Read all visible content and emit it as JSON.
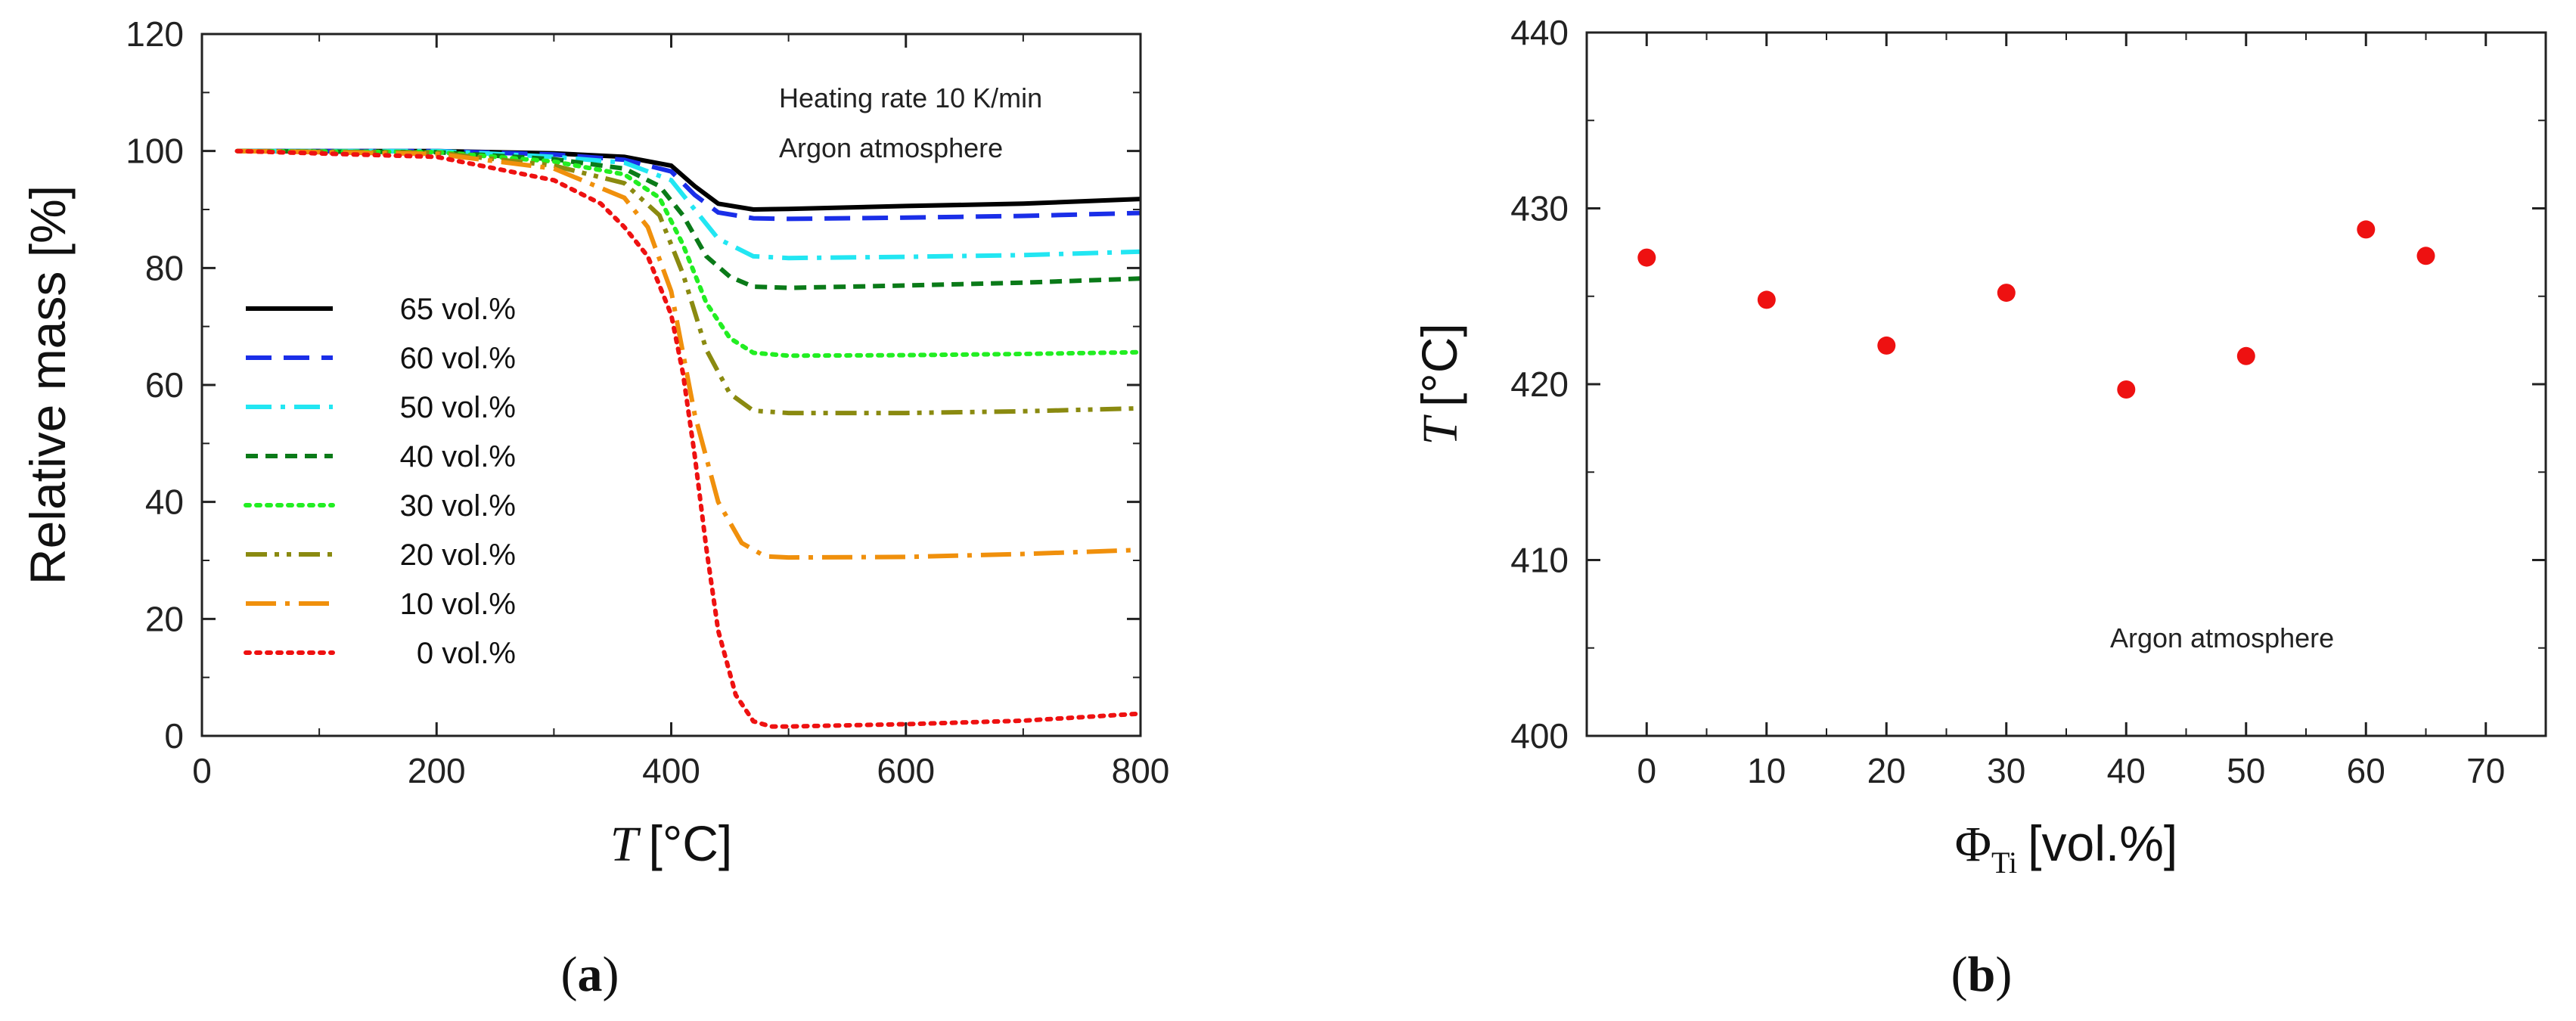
{
  "chart_data": [
    {
      "type": "line",
      "panel_label": "a",
      "title": "",
      "xlabel_symbol": "T",
      "xlabel_unit": "[°C]",
      "ylabel": "Relative mass [%]",
      "xlim": [
        0,
        800
      ],
      "ylim": [
        0,
        120
      ],
      "xticks": [
        0,
        200,
        400,
        600,
        800
      ],
      "yticks": [
        0,
        20,
        40,
        60,
        80,
        100,
        120
      ],
      "grid": false,
      "legend_position": "left",
      "annotations": [
        "Heating rate 10 K/min",
        "Argon atmosphere"
      ],
      "series": [
        {
          "name": "65 vol.%",
          "color": "#000000",
          "dash": "solid",
          "points": [
            [
              30,
              100
            ],
            [
              200,
              100
            ],
            [
              300,
              99.6
            ],
            [
              360,
              99
            ],
            [
              400,
              97.5
            ],
            [
              420,
              94
            ],
            [
              440,
              91
            ],
            [
              470,
              90
            ],
            [
              500,
              90.1
            ],
            [
              600,
              90.6
            ],
            [
              700,
              91
            ],
            [
              800,
              91.8
            ]
          ]
        },
        {
          "name": "60 vol.%",
          "color": "#1a2ee8",
          "dash": "dash",
          "points": [
            [
              30,
              100
            ],
            [
              200,
              100
            ],
            [
              300,
              99.4
            ],
            [
              360,
              98.5
            ],
            [
              400,
              96.5
            ],
            [
              420,
              92.5
            ],
            [
              440,
              89.5
            ],
            [
              470,
              88.5
            ],
            [
              500,
              88.4
            ],
            [
              600,
              88.6
            ],
            [
              700,
              88.9
            ],
            [
              800,
              89.4
            ]
          ]
        },
        {
          "name": "50 vol.%",
          "color": "#22e6f2",
          "dash": "dashdot",
          "points": [
            [
              30,
              100
            ],
            [
              200,
              100
            ],
            [
              300,
              99
            ],
            [
              360,
              98
            ],
            [
              400,
              95
            ],
            [
              420,
              90
            ],
            [
              440,
              85
            ],
            [
              470,
              82
            ],
            [
              500,
              81.7
            ],
            [
              600,
              81.9
            ],
            [
              700,
              82.2
            ],
            [
              800,
              82.8
            ]
          ]
        },
        {
          "name": "40 vol.%",
          "color": "#0a7a18",
          "dash": "shortdash",
          "points": [
            [
              30,
              100
            ],
            [
              200,
              99.8
            ],
            [
              300,
              98.6
            ],
            [
              360,
              97
            ],
            [
              390,
              94
            ],
            [
              410,
              89
            ],
            [
              430,
              82
            ],
            [
              450,
              78.5
            ],
            [
              470,
              76.8
            ],
            [
              500,
              76.6
            ],
            [
              600,
              77
            ],
            [
              700,
              77.5
            ],
            [
              800,
              78.2
            ]
          ]
        },
        {
          "name": "30 vol.%",
          "color": "#22ee22",
          "dash": "dot",
          "points": [
            [
              30,
              100
            ],
            [
              200,
              99.8
            ],
            [
              300,
              98.2
            ],
            [
              360,
              96
            ],
            [
              390,
              92
            ],
            [
              410,
              84
            ],
            [
              430,
              74
            ],
            [
              450,
              68
            ],
            [
              470,
              65.5
            ],
            [
              500,
              65
            ],
            [
              600,
              65.1
            ],
            [
              700,
              65.3
            ],
            [
              800,
              65.6
            ]
          ]
        },
        {
          "name": "20 vol.%",
          "color": "#8a8a10",
          "dash": "dashdotdot",
          "points": [
            [
              30,
              100
            ],
            [
              200,
              99.7
            ],
            [
              300,
              97.5
            ],
            [
              360,
              94.5
            ],
            [
              390,
              89
            ],
            [
              410,
              79
            ],
            [
              430,
              66
            ],
            [
              450,
              58.5
            ],
            [
              470,
              55.6
            ],
            [
              500,
              55.2
            ],
            [
              600,
              55.2
            ],
            [
              700,
              55.5
            ],
            [
              800,
              56
            ]
          ]
        },
        {
          "name": "10 vol.%",
          "color": "#f0900c",
          "dash": "longdashdot",
          "points": [
            [
              30,
              100
            ],
            [
              200,
              99.5
            ],
            [
              300,
              97
            ],
            [
              360,
              92
            ],
            [
              380,
              87
            ],
            [
              400,
              76
            ],
            [
              420,
              55
            ],
            [
              440,
              40
            ],
            [
              460,
              33
            ],
            [
              480,
              30.7
            ],
            [
              500,
              30.5
            ],
            [
              600,
              30.6
            ],
            [
              700,
              31.1
            ],
            [
              800,
              31.8
            ]
          ]
        },
        {
          "name": "0 vol.%",
          "color": "#ee1111",
          "dash": "dot",
          "points": [
            [
              30,
              100
            ],
            [
              200,
              99
            ],
            [
              300,
              95
            ],
            [
              340,
              91
            ],
            [
              360,
              87
            ],
            [
              380,
              82
            ],
            [
              400,
              72
            ],
            [
              410,
              62
            ],
            [
              420,
              48
            ],
            [
              430,
              32
            ],
            [
              440,
              18
            ],
            [
              455,
              7
            ],
            [
              470,
              2.5
            ],
            [
              485,
              1.6
            ],
            [
              500,
              1.6
            ],
            [
              600,
              2
            ],
            [
              700,
              2.6
            ],
            [
              800,
              3.8
            ]
          ]
        }
      ]
    },
    {
      "type": "scatter",
      "panel_label": "b",
      "title": "",
      "xlabel_symbol": "Φ",
      "xlabel_subscript": "Ti",
      "xlabel_unit": "[vol.%]",
      "ylabel_symbol": "T",
      "ylabel_unit": "[°C]",
      "xlim": [
        -5,
        75
      ],
      "ylim": [
        400,
        440
      ],
      "xticks": [
        0,
        10,
        20,
        30,
        40,
        50,
        60,
        70
      ],
      "yticks": [
        400,
        410,
        420,
        430,
        440
      ],
      "grid": false,
      "annotations": [
        "Argon atmosphere"
      ],
      "series": [
        {
          "name": "T",
          "color": "#ee1111",
          "x": [
            0,
            10,
            20,
            30,
            40,
            50,
            60,
            65
          ],
          "y": [
            427.2,
            424.8,
            422.2,
            425.2,
            419.7,
            421.6,
            428.8,
            427.3
          ]
        }
      ]
    }
  ]
}
